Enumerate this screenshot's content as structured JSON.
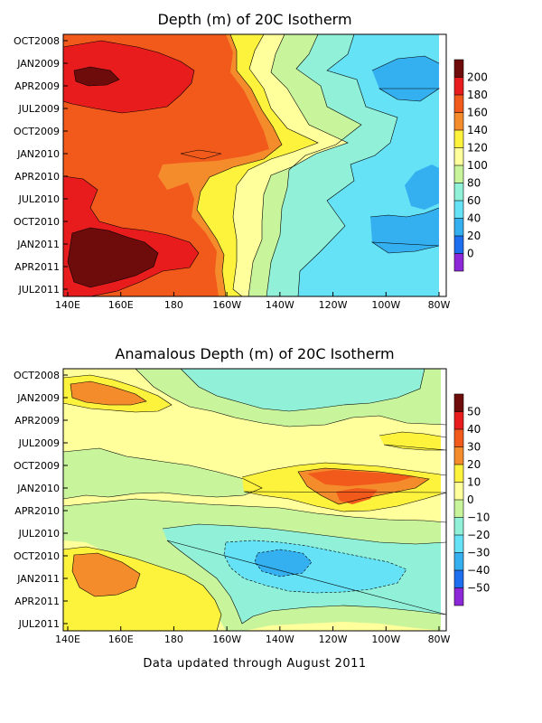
{
  "footer": "Data updated through August 2011",
  "chart_data": [
    {
      "type": "heatmap",
      "title": "Depth (m) of 20C Isotherm",
      "x_ticks": [
        "140E",
        "160E",
        "180",
        "160W",
        "140W",
        "120W",
        "100W",
        "80W"
      ],
      "y_ticks": [
        "OCT2008",
        "JAN2009",
        "APR2009",
        "JUL2009",
        "OCT2009",
        "JAN2010",
        "APR2010",
        "JUL2010",
        "OCT2010",
        "JAN2011",
        "APR2011",
        "JUL2011"
      ],
      "colorbar": {
        "labels": [
          "200",
          "180",
          "160",
          "140",
          "120",
          "100",
          "80",
          "60",
          "40",
          "20",
          "0"
        ],
        "colors": [
          "#6e0c0c",
          "#e81c1c",
          "#f25a1c",
          "#f58c2c",
          "#fdf33c",
          "#ffff9c",
          "#c8f59c",
          "#90f0d8",
          "#66e2f7",
          "#34b0f0",
          "#1e6ef0",
          "#8c28d8"
        ]
      },
      "xlim": [
        "140E",
        "80W"
      ],
      "ylim": [
        "OCT2008",
        "AUG2011"
      ]
    },
    {
      "type": "heatmap",
      "title": "Anamalous Depth (m) of 20C Isotherm",
      "x_ticks": [
        "140E",
        "160E",
        "180",
        "160W",
        "140W",
        "120W",
        "100W",
        "80W"
      ],
      "y_ticks": [
        "OCT2008",
        "JAN2009",
        "APR2009",
        "JUL2009",
        "OCT2009",
        "JAN2010",
        "APR2010",
        "JUL2010",
        "OCT2010",
        "JAN2011",
        "APR2011",
        "JUL2011"
      ],
      "colorbar": {
        "labels": [
          "50",
          "40",
          "30",
          "20",
          "10",
          "0",
          "−10",
          "−20",
          "−30",
          "−40",
          "−50"
        ],
        "colors": [
          "#6e0c0c",
          "#e81c1c",
          "#f25a1c",
          "#f58c2c",
          "#fdf33c",
          "#ffff9c",
          "#c8f59c",
          "#90f0d8",
          "#66e2f7",
          "#34b0f0",
          "#1e6ef0",
          "#8c28d8"
        ]
      },
      "xlim": [
        "140E",
        "80W"
      ],
      "ylim": [
        "OCT2008",
        "AUG2011"
      ]
    }
  ]
}
